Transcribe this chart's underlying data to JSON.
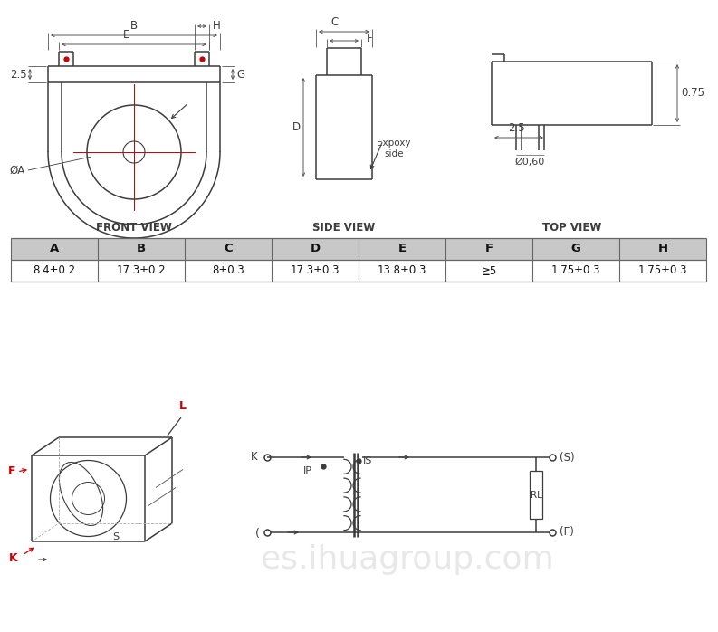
{
  "bg_color": "#ffffff",
  "line_color": "#3c3c3c",
  "red_color": "#cc0000",
  "table_header_bg": "#c8c8c8",
  "table_border": "#555555",
  "table_cols": [
    "A",
    "B",
    "C",
    "D",
    "E",
    "F",
    "G",
    "H"
  ],
  "table_vals": [
    "8.4±0.2",
    "17.3±0.2",
    "8±0.3",
    "17.3±0.3",
    "13.8±0.3",
    "≧5",
    "1.75±0.3",
    "1.75±0.3"
  ],
  "front_view_label": "FRONT VIEW",
  "side_view_label": "SIDE VIEW",
  "top_view_label": "TOP VIEW",
  "expoxy_label": "Expoxy\nside",
  "dim_25": "2.5",
  "dim_phiA": "ØA",
  "dim_075": "0.75",
  "dim_25b": "2.5",
  "dim_phi060": "Ø0,60"
}
